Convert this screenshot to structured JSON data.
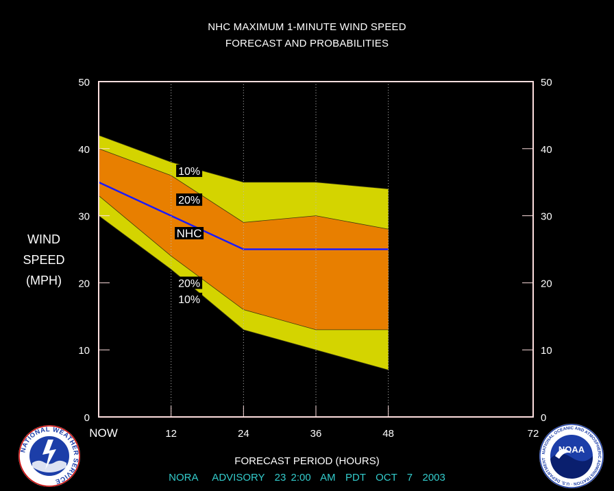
{
  "title_line1": "NHC MAXIMUM 1-MINUTE WIND SPEED",
  "title_line2": "FORECAST AND PROBABILITIES",
  "ylabel_lines": [
    "WIND",
    "SPEED",
    "(MPH)"
  ],
  "xlabel": "FORECAST PERIOD (HOURS)",
  "advisory": "NORA   ADVISORY  23 2:00  AM  PDT  OCT  7  2003",
  "logos": [
    {
      "name": "nws-logo",
      "ring_text": "NATIONAL WEATHER SERVICE"
    },
    {
      "name": "noaa-logo",
      "center_text": "NOAA",
      "ring_text": "NATIONAL OCEANIC AND ATMOSPHERIC ADMINISTRATION · U.S. DEPARTMENT OF COMMERCE"
    }
  ],
  "colors": {
    "background": "#000000",
    "frame": "#ffe0e0",
    "outer_band": "#d4d400",
    "inner_band": "#e87f00",
    "nhc_line": "#1a1aff",
    "advisory_text": "#33cccc"
  },
  "chart_data": {
    "type": "area",
    "title": "NHC MAXIMUM 1-MINUTE WIND SPEED FORECAST AND PROBABILITIES",
    "xlabel": "FORECAST PERIOD (HOURS)",
    "ylabel": "WIND SPEED (MPH)",
    "xlim": [
      0,
      72
    ],
    "ylim": [
      0,
      50
    ],
    "x_ticks": [
      0,
      12,
      24,
      36,
      48,
      72
    ],
    "x_tick_labels": [
      "NOW",
      "12",
      "24",
      "36",
      "48",
      "72"
    ],
    "y_ticks": [
      0,
      10,
      20,
      30,
      40,
      50
    ],
    "grid": "vertical dotted at 12, 24, 36, 48",
    "x": [
      0,
      12,
      24,
      36,
      48
    ],
    "series": [
      {
        "name": "10%",
        "bound": "upper",
        "values": [
          42,
          38,
          35,
          35,
          34
        ]
      },
      {
        "name": "20%",
        "bound": "upper",
        "values": [
          40,
          36,
          29,
          30,
          28
        ]
      },
      {
        "name": "NHC",
        "values": [
          35,
          30,
          25,
          25,
          25
        ]
      },
      {
        "name": "20%",
        "bound": "lower",
        "values": [
          33,
          24,
          16,
          13,
          13
        ]
      },
      {
        "name": "10%",
        "bound": "lower",
        "values": [
          30,
          22,
          13,
          10,
          7
        ]
      }
    ],
    "annotations": [
      {
        "text": "10%",
        "x": 15,
        "y": 36.7
      },
      {
        "text": "20%",
        "x": 15,
        "y": 32.4
      },
      {
        "text": "NHC",
        "x": 15,
        "y": 27.4
      },
      {
        "text": "20%",
        "x": 15,
        "y": 20.0
      },
      {
        "text": "10%",
        "x": 15,
        "y": 17.6
      }
    ]
  }
}
